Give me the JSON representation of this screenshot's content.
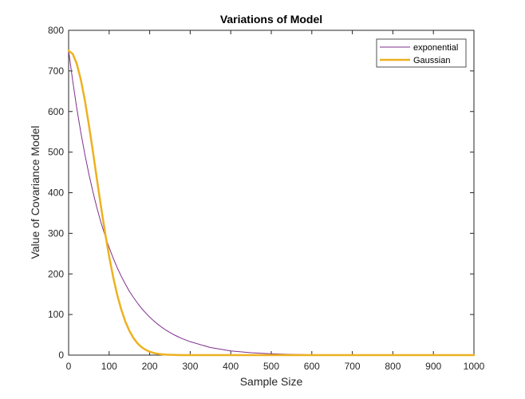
{
  "chart_data": {
    "type": "line",
    "title": "Variations of Model",
    "xlabel": "Sample Size",
    "ylabel": "Value of Covariance Model",
    "xlim": [
      0,
      1000
    ],
    "ylim": [
      0,
      800
    ],
    "xticks": [
      0,
      100,
      200,
      300,
      400,
      500,
      600,
      700,
      800,
      900,
      1000
    ],
    "yticks": [
      0,
      100,
      200,
      300,
      400,
      500,
      600,
      700,
      800
    ],
    "grid": false,
    "legend_position": "top-right",
    "x": [
      0,
      10,
      20,
      30,
      40,
      50,
      60,
      70,
      80,
      90,
      100,
      110,
      120,
      130,
      140,
      150,
      160,
      170,
      180,
      190,
      200,
      210,
      220,
      230,
      240,
      250,
      260,
      270,
      280,
      300,
      350,
      400,
      450,
      500,
      550,
      600,
      650,
      700,
      800,
      900,
      1000
    ],
    "series": [
      {
        "name": "exponential",
        "color": "#7E2F8E",
        "line_width": 1,
        "values": [
          750,
          676,
          609,
          549,
          495,
          446,
          402,
          362,
          326,
          294,
          265,
          239,
          215,
          194,
          175,
          157,
          142,
          128,
          115,
          104,
          93.6,
          84.4,
          76.0,
          68.5,
          61.7,
          55.7,
          50.1,
          45.2,
          40.7,
          33.1,
          18.6,
          10.4,
          5.8,
          3.3,
          1.8,
          1.0,
          0.6,
          0.3,
          0.1,
          0.0,
          0.0
        ]
      },
      {
        "name": "Gaussian",
        "color": "#EDB120",
        "line_width": 2.5,
        "values": [
          750,
          742,
          718,
          679,
          628,
          567,
          501,
          432,
          365,
          301,
          243,
          192,
          148,
          112,
          82.6,
          59.6,
          42.1,
          29.0,
          19.6,
          13.0,
          8.4,
          5.3,
          3.3,
          2.0,
          1.2,
          0.7,
          0.4,
          0.2,
          0.1,
          0.0,
          0.0,
          0.0,
          0.0,
          0.0,
          0.0,
          0.0,
          0.0,
          0.0,
          0.0,
          0.0,
          0.0
        ]
      }
    ]
  }
}
